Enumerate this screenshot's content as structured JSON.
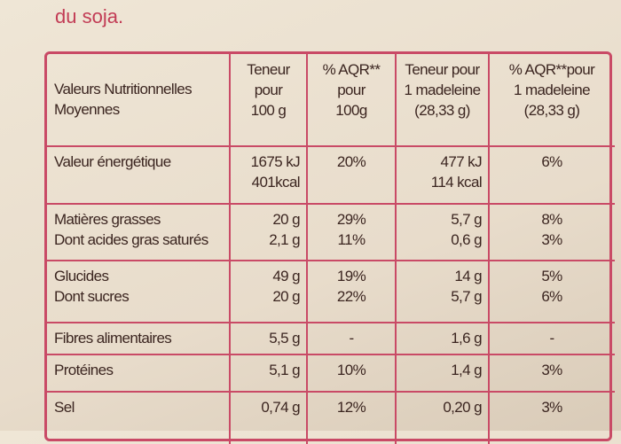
{
  "intro": "du soja.",
  "table": {
    "header": [
      [
        "Valeurs Nutritionnelles",
        "Moyennes"
      ],
      [
        "Teneur",
        "pour",
        "100 g"
      ],
      [
        "% AQR**",
        "pour",
        "100g"
      ],
      [
        "Teneur pour",
        "1 madeleine",
        "(28,33 g)"
      ],
      [
        "% AQR**pour",
        "1 madeleine",
        "(28,33 g)"
      ]
    ],
    "rows": [
      [
        [
          "Valeur énergétique"
        ],
        [
          "1675 kJ",
          "401kcal"
        ],
        [
          "20%"
        ],
        [
          "477 kJ",
          "114 kcal"
        ],
        [
          "6%"
        ]
      ],
      [
        [
          "Matières grasses",
          "Dont acides gras saturés"
        ],
        [
          "20 g",
          "2,1 g"
        ],
        [
          "29%",
          "11%"
        ],
        [
          "5,7 g",
          "0,6 g"
        ],
        [
          "8%",
          "3%"
        ]
      ],
      [
        [
          "Glucides",
          "Dont sucres"
        ],
        [
          "49 g",
          "20 g"
        ],
        [
          "19%",
          "22%"
        ],
        [
          "14 g",
          "5,7 g"
        ],
        [
          "5%",
          "6%"
        ]
      ],
      [
        [
          "Fibres alimentaires"
        ],
        [
          "5,5 g"
        ],
        [
          "-"
        ],
        [
          "1,6 g"
        ],
        [
          "-"
        ]
      ],
      [
        [
          "Protéines"
        ],
        [
          "5,1 g"
        ],
        [
          "10%"
        ],
        [
          "1,4 g"
        ],
        [
          "3%"
        ]
      ],
      [
        [
          "Sel"
        ],
        [
          "0,74 g"
        ],
        [
          "12%"
        ],
        [
          "0,20 g"
        ],
        [
          "3%"
        ]
      ]
    ]
  }
}
